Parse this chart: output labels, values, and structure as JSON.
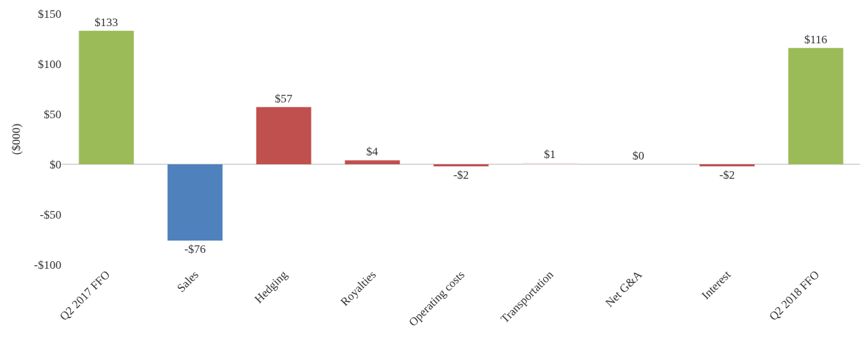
{
  "chart_data": {
    "type": "bar",
    "ylabel": "($000)",
    "categories": [
      "Q2 2017 FFO",
      "Sales",
      "Hedging",
      "Royalties",
      "Operating costs",
      "Transportation",
      "Net G&A",
      "Interest",
      "Q2 2018 FFO"
    ],
    "values": [
      133,
      -76,
      57,
      4,
      -2,
      1,
      0,
      -2,
      116
    ],
    "value_labels": [
      "$133",
      "-$76",
      "$57",
      "$4",
      "-$2",
      "$1",
      "$0",
      "-$2",
      "$116"
    ],
    "colors": [
      "#9bbb59",
      "#4f81bd",
      "#c0504d",
      "#c0504d",
      "#c0504d",
      "#f2dcdb",
      "#f2f2f2",
      "#c0504d",
      "#9bbb59"
    ],
    "ylim": [
      -100,
      150
    ],
    "yticks": [
      {
        "value": -100,
        "label": "-$100"
      },
      {
        "value": -50,
        "label": "-$50"
      },
      {
        "value": 0,
        "label": "$0"
      },
      {
        "value": 50,
        "label": "$50"
      },
      {
        "value": 100,
        "label": "$100"
      },
      {
        "value": 150,
        "label": "$150"
      }
    ],
    "ref_lines": [
      {
        "axis": "y",
        "value": 0,
        "color": "#d9d9d9"
      }
    ],
    "grid": false,
    "legend": false
  }
}
